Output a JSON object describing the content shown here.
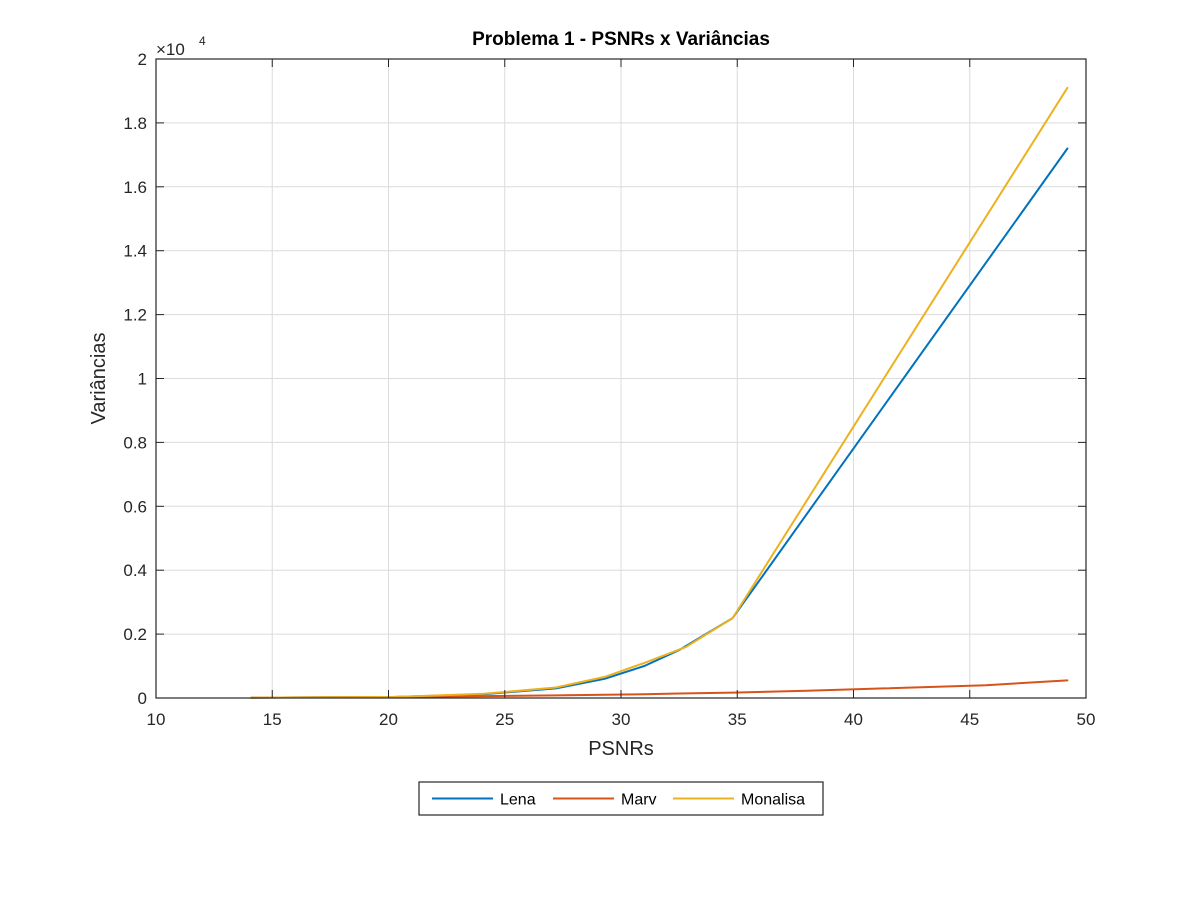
{
  "chart_data": {
    "type": "line",
    "title": "Problema 1 - PSNRs x Variâncias",
    "xlabel": "PSNRs",
    "ylabel": "Variâncias",
    "xlim": [
      10,
      50
    ],
    "ylim": [
      0,
      20000
    ],
    "xticks": [
      10,
      15,
      20,
      25,
      30,
      35,
      40,
      45,
      50
    ],
    "xtick_labels": [
      "10",
      "15",
      "20",
      "25",
      "30",
      "35",
      "40",
      "45",
      "50"
    ],
    "yticks": [
      0,
      2000,
      4000,
      6000,
      8000,
      10000,
      12000,
      14000,
      16000,
      18000,
      20000
    ],
    "ytick_labels": [
      "0",
      "0.2",
      "0.4",
      "0.6",
      "0.8",
      "1",
      "1.2",
      "1.4",
      "1.6",
      "1.8",
      "2"
    ],
    "y_multiplier_base": "×10",
    "y_multiplier_exp": "4",
    "grid": true,
    "legend_position": "bottom-outside",
    "series": [
      {
        "name": "Lena",
        "color": "#0072BD",
        "x": [
          14.1,
          20.2,
          24.1,
          27.2,
          29.3,
          31.0,
          32.5,
          34.8,
          49.2
        ],
        "y": [
          10,
          30,
          120,
          300,
          600,
          1000,
          1500,
          2500,
          17200
        ]
      },
      {
        "name": "Marv",
        "color": "#D95319",
        "x": [
          14.1,
          20.2,
          24.1,
          27.2,
          29.3,
          31.0,
          32.5,
          34.8,
          38.0,
          41.3,
          45.7,
          49.2
        ],
        "y": [
          10,
          30,
          60,
          80,
          100,
          120,
          140,
          170,
          230,
          300,
          400,
          550
        ]
      },
      {
        "name": "Monalisa",
        "color": "#EDB120",
        "x": [
          14.1,
          20.2,
          24.1,
          27.2,
          29.3,
          31.0,
          32.8,
          34.8,
          49.2
        ],
        "y": [
          10,
          30,
          130,
          330,
          660,
          1100,
          1600,
          2500,
          19100
        ]
      }
    ]
  }
}
